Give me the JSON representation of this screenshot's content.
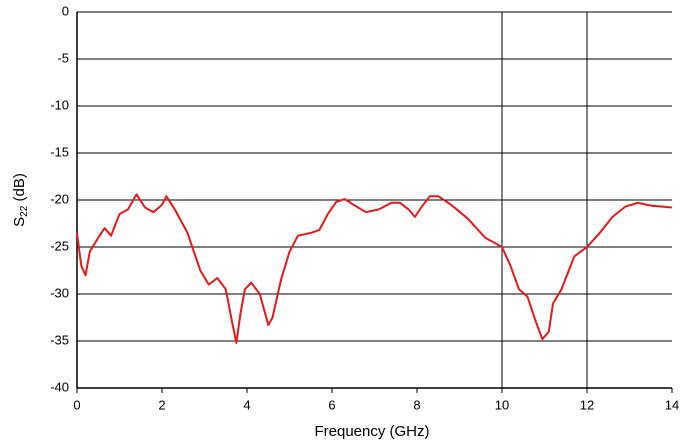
{
  "chart_data": {
    "type": "line",
    "x_label": "Frequency (GHz)",
    "y_label": "S",
    "y_label_subscript": "22",
    "y_label_unit": " (dB)",
    "x": [
      0,
      0.1,
      0.2,
      0.3,
      0.5,
      0.65,
      0.8,
      1.0,
      1.2,
      1.4,
      1.6,
      1.8,
      2.0,
      2.1,
      2.3,
      2.6,
      2.9,
      3.1,
      3.3,
      3.5,
      3.65,
      3.75,
      3.85,
      3.95,
      4.1,
      4.3,
      4.5,
      4.6,
      4.8,
      5.0,
      5.2,
      5.5,
      5.7,
      5.9,
      6.1,
      6.3,
      6.5,
      6.8,
      7.1,
      7.4,
      7.6,
      7.8,
      7.95,
      8.1,
      8.3,
      8.5,
      8.8,
      9.2,
      9.6,
      10.0,
      10.2,
      10.4,
      10.6,
      10.8,
      10.95,
      11.1,
      11.2,
      11.4,
      11.7,
      12.0,
      12.3,
      12.6,
      12.9,
      13.2,
      13.5,
      14.0
    ],
    "series": [
      {
        "color": "#e41a1c",
        "values": [
          -23.5,
          -27,
          -28,
          -25.5,
          -24,
          -23,
          -23.8,
          -21.5,
          -21,
          -19.4,
          -20.8,
          -21.3,
          -20.5,
          -19.6,
          -21,
          -23.5,
          -27.5,
          -29,
          -28.3,
          -29.5,
          -33,
          -35.2,
          -32,
          -29.5,
          -28.8,
          -30,
          -33.3,
          -32.5,
          -28.5,
          -25.5,
          -23.8,
          -23.5,
          -23.2,
          -21.5,
          -20.2,
          -19.9,
          -20.5,
          -21.3,
          -21,
          -20.3,
          -20.3,
          -21,
          -21.8,
          -20.8,
          -19.6,
          -19.6,
          -20.5,
          -22,
          -24,
          -25,
          -27,
          -29.5,
          -30.3,
          -33,
          -34.8,
          -34,
          -31,
          -29.5,
          -26,
          -25,
          -23.5,
          -21.8,
          -20.7,
          -20.3,
          -20.6,
          -20.8
        ]
      }
    ],
    "xlim": [
      0,
      14
    ],
    "xticks": [
      0,
      2,
      4,
      6,
      8,
      10,
      12,
      14
    ],
    "ylim": [
      -40,
      0
    ],
    "yticks": [
      -40,
      -35,
      -30,
      -25,
      -20,
      -15,
      -10,
      -5,
      0
    ],
    "grid": "y",
    "x_grid_lines": [
      10,
      12
    ]
  }
}
